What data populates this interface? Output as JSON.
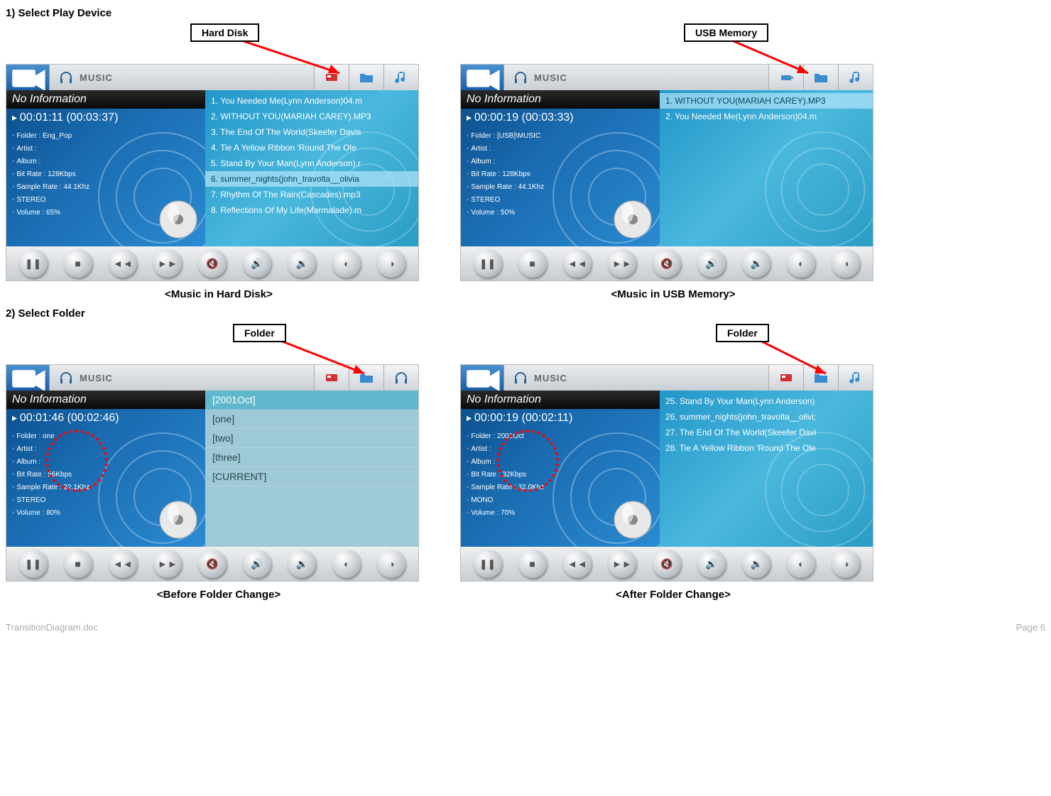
{
  "doc": {
    "filename": "TransitionDiagram.doc",
    "page": "Page 6"
  },
  "section1": {
    "title": "1) Select Play Device"
  },
  "section2": {
    "title": "2) Select Folder"
  },
  "callouts": {
    "hdd": "Hard Disk",
    "usb": "USB Memory",
    "folder": "Folder"
  },
  "captions": {
    "s1a": "<Music in Hard Disk>",
    "s1b": "<Music in USB Memory>",
    "s2a": "<Before Folder Change>",
    "s2b": "<After Folder Change>"
  },
  "musicLabel": "MUSIC",
  "noInfo": "No Information",
  "p1a": {
    "time": "00:01:11 (00:03:37)",
    "meta": {
      "folder": "Folder : Eng_Pop",
      "artist": "Artist :",
      "album": "Album :",
      "bitrate": "Bit Rate : 128Kbps",
      "sample": "Sample Rate : 44.1Khz",
      "stereo": "STEREO",
      "volume": "Volume : 65%"
    },
    "items": [
      "1. You Needed Me(Lynn Anderson)04.m",
      "2. WITHOUT YOU(MARIAH CAREY).MP3",
      "3. The End Of The World(Skeefer Davis",
      "4. Tie A Yellow Ribbon 'Round The Ole",
      "5. Stand By Your Man(Lynn Anderson).r",
      "6. summer_nights(john_travolta__olivia",
      "7. Rhythm Of The Rain(Cascades).mp3",
      "8. Reflections Of My Life(Marmalade).m"
    ],
    "selIndex": 5
  },
  "p1b": {
    "time": "00:00:19 (00:03:33)",
    "meta": {
      "folder": "Folder : [USB]\\MUSIC",
      "artist": "Artist :",
      "album": "Album :",
      "bitrate": "Bit Rate : 128Kbps",
      "sample": "Sample Rate : 44.1Khz",
      "stereo": "STEREO",
      "volume": "Volume : 50%"
    },
    "items": [
      "1. WITHOUT YOU(MARIAH CAREY).MP3",
      "2. You Needed Me(Lynn Anderson)04.m"
    ],
    "selIndex": 0
  },
  "p2a": {
    "time": "00:01:46 (00:02:46)",
    "meta": {
      "folder": "Folder : one",
      "artist": "Artist :",
      "album": "Album :",
      "bitrate": "Bit Rate : 56Kbps",
      "sample": "Sample Rate : 22.1Khz",
      "stereo": "STEREO",
      "volume": "Volume : 80%"
    },
    "folders": [
      "[2001Oct]",
      "[one]",
      "[two]",
      "[three]",
      "[CURRENT]"
    ],
    "selIndex": 0
  },
  "p2b": {
    "time": "00:00:19 (00:02:11)",
    "meta": {
      "folder": "Folder : 2001Oct",
      "artist": "Artist :",
      "album": "Album :",
      "bitrate": "Bit Rate : 32Kbps",
      "sample": "Sample Rate : 32.0Khz",
      "stereo": "MONO",
      "volume": "Volume : 70%"
    },
    "items": [
      "25. Stand By Your Man(Lynn Anderson)",
      "26. summer_nights(john_travolta__olivi;",
      "27. The End Of The World(Skeefer Davi",
      "28. Tie A Yellow Ribbon 'Round The Ole"
    ]
  },
  "ctrlIcons": [
    "pause",
    "stop",
    "prev",
    "next",
    "mute",
    "vol-up",
    "vol-down",
    "mode-a",
    "mode-b"
  ]
}
